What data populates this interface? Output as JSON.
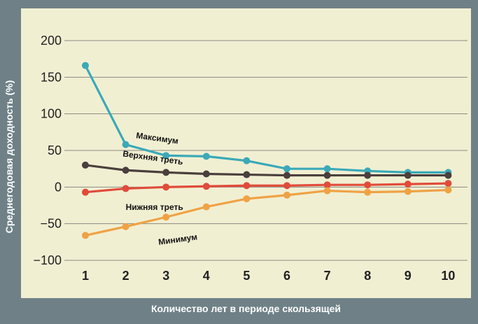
{
  "chart_data": {
    "type": "line",
    "title": "",
    "xlabel": "Количество лет в периоде скользящей",
    "ylabel": "Среднегодовая доходность (%)",
    "x": [
      1,
      2,
      3,
      4,
      5,
      6,
      7,
      8,
      9,
      10
    ],
    "ylim": [
      -100,
      200
    ],
    "yticks": [
      200,
      150,
      100,
      50,
      0,
      -50,
      -100
    ],
    "ytick_labels": [
      "200",
      "150",
      "100",
      "50",
      "0",
      "−50",
      "−100"
    ],
    "grid": "horizontal",
    "series": [
      {
        "name": "Максимум",
        "color": "#3aa9b8",
        "values": [
          166,
          58,
          43,
          42,
          36,
          25,
          25,
          22,
          20,
          20
        ]
      },
      {
        "name": "Верхняя треть",
        "color": "#4a3f3c",
        "values": [
          30,
          23,
          20,
          18,
          17,
          16,
          16,
          16,
          16,
          16
        ]
      },
      {
        "name": "Нижняя треть",
        "color": "#e04b3a",
        "values": [
          -7,
          -2,
          0,
          1,
          2,
          2,
          3,
          3,
          4,
          5
        ]
      },
      {
        "name": "Минимум",
        "color": "#efa245",
        "values": [
          -66,
          -54,
          -41,
          -27,
          -16,
          -11,
          -5,
          -7,
          -6,
          -4
        ]
      }
    ]
  }
}
